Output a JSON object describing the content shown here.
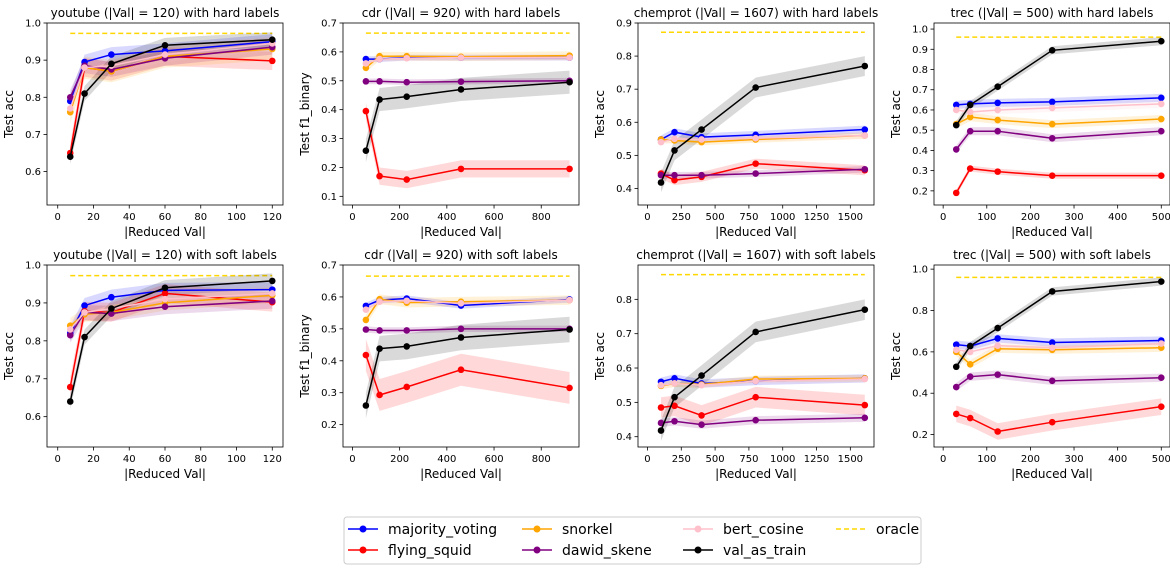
{
  "colors": {
    "majority_voting": "#0000ff",
    "flying_squid": "#ff0000",
    "snorkel": "#ffa500",
    "dawid_skene": "#800080",
    "bert_cosine": "#ffc0cb",
    "val_as_train": "#000000",
    "oracle": "#ffd700"
  },
  "legend": {
    "entries": [
      {
        "key": "majority_voting",
        "label": "majority_voting",
        "style": "marker"
      },
      {
        "key": "flying_squid",
        "label": "flying_squid",
        "style": "marker"
      },
      {
        "key": "snorkel",
        "label": "snorkel",
        "style": "marker"
      },
      {
        "key": "dawid_skene",
        "label": "dawid_skene",
        "style": "marker"
      },
      {
        "key": "bert_cosine",
        "label": "bert_cosine",
        "style": "marker"
      },
      {
        "key": "val_as_train",
        "label": "val_as_train",
        "style": "marker"
      },
      {
        "key": "oracle",
        "label": "oracle",
        "style": "dashed"
      }
    ]
  },
  "chart_data": [
    {
      "type": "line",
      "title": "youtube (|Val| = 120) with hard labels",
      "xlabel": "|Reduced Val|",
      "ylabel": "Test acc",
      "xlim": [
        -6,
        126
      ],
      "ylim": [
        0.51,
        1.0
      ],
      "xticks": [
        0,
        20,
        40,
        60,
        80,
        100,
        120
      ],
      "yticks": [
        0.6,
        0.7,
        0.8,
        0.9,
        1.0
      ],
      "ytick_labels": [
        "0.6",
        "0.7",
        "0.8",
        "0.9",
        "1.0"
      ],
      "x": [
        7,
        15,
        30,
        60,
        120
      ],
      "oracle": 0.972,
      "series": [
        {
          "name": "majority_voting",
          "values": [
            0.79,
            0.895,
            0.915,
            0.925,
            0.95
          ],
          "band": 0.02
        },
        {
          "name": "flying_squid",
          "values": [
            0.65,
            0.88,
            0.87,
            0.91,
            0.898
          ],
          "band": 0.025
        },
        {
          "name": "snorkel",
          "values": [
            0.76,
            0.88,
            0.87,
            0.91,
            0.93
          ],
          "band": 0.03
        },
        {
          "name": "dawid_skene",
          "values": [
            0.8,
            0.885,
            0.875,
            0.905,
            0.935
          ],
          "band": 0.02
        },
        {
          "name": "bert_cosine",
          "values": [
            0.77,
            0.88,
            0.885,
            0.915,
            0.945
          ],
          "band": 0.02
        },
        {
          "name": "val_as_train",
          "values": [
            0.64,
            0.81,
            0.89,
            0.94,
            0.955
          ],
          "band": 0.02
        }
      ]
    },
    {
      "type": "line",
      "title": "cdr (|Val| = 920) with hard labels",
      "xlabel": "|Reduced Val|",
      "ylabel": "Test f1_binary",
      "xlim": [
        -40,
        960
      ],
      "ylim": [
        0.07,
        0.7
      ],
      "xticks": [
        0,
        200,
        400,
        600,
        800
      ],
      "yticks": [
        0.1,
        0.2,
        0.3,
        0.4,
        0.5,
        0.6,
        0.7
      ],
      "ytick_labels": [
        "0.1",
        "0.2",
        "0.3",
        "0.4",
        "0.5",
        "0.6",
        "0.7"
      ],
      "x": [
        57,
        115,
        230,
        460,
        920
      ],
      "oracle": 0.665,
      "series": [
        {
          "name": "majority_voting",
          "values": [
            0.575,
            0.575,
            0.58,
            0.58,
            0.58
          ],
          "band": 0.01
        },
        {
          "name": "flying_squid",
          "values": [
            0.395,
            0.17,
            0.158,
            0.195,
            0.195
          ],
          "band": 0.03
        },
        {
          "name": "snorkel",
          "values": [
            0.545,
            0.585,
            0.585,
            0.583,
            0.587
          ],
          "band": 0.015
        },
        {
          "name": "dawid_skene",
          "values": [
            0.498,
            0.498,
            0.495,
            0.497,
            0.5
          ],
          "band": 0.01
        },
        {
          "name": "bert_cosine",
          "values": [
            0.56,
            0.575,
            0.578,
            0.58,
            0.58
          ],
          "band": 0.01
        },
        {
          "name": "val_as_train",
          "values": [
            0.258,
            0.435,
            0.445,
            0.47,
            0.495
          ],
          "band": 0.04
        }
      ]
    },
    {
      "type": "line",
      "title": "chemprot (|Val| = 1607) with hard labels",
      "xlabel": "|Reduced Val|",
      "ylabel": "Test acc",
      "xlim": [
        -70,
        1675
      ],
      "ylim": [
        0.35,
        0.9
      ],
      "xticks": [
        0,
        250,
        500,
        750,
        1000,
        1250,
        1500
      ],
      "yticks": [
        0.4,
        0.5,
        0.6,
        0.7,
        0.8,
        0.9
      ],
      "ytick_labels": [
        "0.4",
        "0.5",
        "0.6",
        "0.7",
        "0.8",
        "0.9"
      ],
      "x": [
        100,
        200,
        400,
        800,
        1607
      ],
      "oracle": 0.872,
      "series": [
        {
          "name": "majority_voting",
          "values": [
            0.548,
            0.57,
            0.555,
            0.562,
            0.578
          ],
          "band": 0.012
        },
        {
          "name": "flying_squid",
          "values": [
            0.445,
            0.425,
            0.435,
            0.475,
            0.455
          ],
          "band": 0.015
        },
        {
          "name": "snorkel",
          "values": [
            0.548,
            0.545,
            0.54,
            0.548,
            0.56
          ],
          "band": 0.01
        },
        {
          "name": "dawid_skene",
          "values": [
            0.44,
            0.44,
            0.44,
            0.445,
            0.458
          ],
          "band": 0.01
        },
        {
          "name": "bert_cosine",
          "values": [
            0.54,
            0.55,
            0.548,
            0.552,
            0.56
          ],
          "band": 0.01
        },
        {
          "name": "val_as_train",
          "values": [
            0.418,
            0.515,
            0.578,
            0.705,
            0.77
          ],
          "band": 0.03
        }
      ]
    },
    {
      "type": "line",
      "title": "trec (|Val| = 500) with hard labels",
      "xlabel": "|Reduced Val|",
      "ylabel": "Test acc",
      "xlim": [
        -21,
        520
      ],
      "ylim": [
        0.13,
        1.03
      ],
      "xticks": [
        0,
        100,
        200,
        300,
        400,
        500
      ],
      "yticks": [
        0.2,
        0.3,
        0.4,
        0.5,
        0.6,
        0.7,
        0.8,
        0.9,
        1.0
      ],
      "ytick_labels": [
        "0.2",
        "0.3",
        "0.4",
        "0.5",
        "0.6",
        "0.7",
        "0.8",
        "0.9",
        "1.0"
      ],
      "x": [
        30,
        62,
        125,
        250,
        500
      ],
      "oracle": 0.96,
      "series": [
        {
          "name": "majority_voting",
          "values": [
            0.625,
            0.63,
            0.635,
            0.64,
            0.66
          ],
          "band": 0.02
        },
        {
          "name": "flying_squid",
          "values": [
            0.19,
            0.31,
            0.295,
            0.275,
            0.275
          ],
          "band": 0.015
        },
        {
          "name": "snorkel",
          "values": [
            0.53,
            0.565,
            0.55,
            0.53,
            0.555
          ],
          "band": 0.02
        },
        {
          "name": "dawid_skene",
          "values": [
            0.405,
            0.495,
            0.495,
            0.46,
            0.495
          ],
          "band": 0.02
        },
        {
          "name": "bert_cosine",
          "values": [
            0.6,
            0.59,
            0.6,
            0.61,
            0.63
          ],
          "band": 0.02
        },
        {
          "name": "val_as_train",
          "values": [
            0.525,
            0.625,
            0.715,
            0.895,
            0.94
          ],
          "band": 0.02
        }
      ]
    },
    {
      "type": "line",
      "title": "youtube (|Val| = 120) with soft labels",
      "xlabel": "|Reduced Val|",
      "ylabel": "Test acc",
      "xlim": [
        -6,
        126
      ],
      "ylim": [
        0.52,
        1.0
      ],
      "xticks": [
        0,
        20,
        40,
        60,
        80,
        100,
        120
      ],
      "yticks": [
        0.6,
        0.7,
        0.8,
        0.9,
        1.0
      ],
      "ytick_labels": [
        "0.6",
        "0.7",
        "0.8",
        "0.9",
        "1.0"
      ],
      "x": [
        7,
        15,
        30,
        60,
        120
      ],
      "oracle": 0.972,
      "series": [
        {
          "name": "majority_voting",
          "values": [
            0.82,
            0.893,
            0.915,
            0.933,
            0.935
          ],
          "band": 0.02
        },
        {
          "name": "flying_squid",
          "values": [
            0.678,
            0.878,
            0.875,
            0.925,
            0.902
          ],
          "band": 0.025
        },
        {
          "name": "snorkel",
          "values": [
            0.84,
            0.87,
            0.875,
            0.9,
            0.92
          ],
          "band": 0.02
        },
        {
          "name": "dawid_skene",
          "values": [
            0.815,
            0.875,
            0.872,
            0.89,
            0.905
          ],
          "band": 0.02
        },
        {
          "name": "bert_cosine",
          "values": [
            0.83,
            0.875,
            0.885,
            0.91,
            0.925
          ],
          "band": 0.02
        },
        {
          "name": "val_as_train",
          "values": [
            0.64,
            0.81,
            0.885,
            0.94,
            0.958
          ],
          "band": 0.02
        }
      ]
    },
    {
      "type": "line",
      "title": "cdr (|Val| = 920) with soft labels",
      "xlabel": "|Reduced Val|",
      "ylabel": "Test f1_binary",
      "xlim": [
        -40,
        960
      ],
      "ylim": [
        0.13,
        0.7
      ],
      "xticks": [
        0,
        200,
        400,
        600,
        800
      ],
      "yticks": [
        0.2,
        0.3,
        0.4,
        0.5,
        0.6,
        0.7
      ],
      "ytick_labels": [
        "0.2",
        "0.3",
        "0.4",
        "0.5",
        "0.6",
        "0.7"
      ],
      "x": [
        57,
        115,
        230,
        460,
        920
      ],
      "oracle": 0.665,
      "series": [
        {
          "name": "majority_voting",
          "values": [
            0.572,
            0.59,
            0.595,
            0.573,
            0.592
          ],
          "band": 0.01
        },
        {
          "name": "flying_squid",
          "values": [
            0.418,
            0.293,
            0.318,
            0.372,
            0.315
          ],
          "band": 0.05
        },
        {
          "name": "snorkel",
          "values": [
            0.528,
            0.593,
            0.582,
            0.585,
            0.59
          ],
          "band": 0.015
        },
        {
          "name": "dawid_skene",
          "values": [
            0.498,
            0.495,
            0.495,
            0.5,
            0.5
          ],
          "band": 0.01
        },
        {
          "name": "bert_cosine",
          "values": [
            0.56,
            0.585,
            0.588,
            0.58,
            0.59
          ],
          "band": 0.01
        },
        {
          "name": "val_as_train",
          "values": [
            0.26,
            0.438,
            0.445,
            0.473,
            0.498
          ],
          "band": 0.04
        }
      ]
    },
    {
      "type": "line",
      "title": "chemprot (|Val| = 1607) with soft labels",
      "xlabel": "|Reduced Val|",
      "ylabel": "Test acc",
      "xlim": [
        -70,
        1675
      ],
      "ylim": [
        0.37,
        0.9
      ],
      "xticks": [
        0,
        250,
        500,
        750,
        1000,
        1250,
        1500
      ],
      "yticks": [
        0.4,
        0.5,
        0.6,
        0.7,
        0.8
      ],
      "ytick_labels": [
        "0.4",
        "0.5",
        "0.6",
        "0.7",
        "0.8"
      ],
      "x": [
        100,
        200,
        400,
        800,
        1607
      ],
      "oracle": 0.872,
      "series": [
        {
          "name": "majority_voting",
          "values": [
            0.56,
            0.57,
            0.555,
            0.562,
            0.57
          ],
          "band": 0.012
        },
        {
          "name": "flying_squid",
          "values": [
            0.485,
            0.49,
            0.462,
            0.515,
            0.492
          ],
          "band": 0.03
        },
        {
          "name": "snorkel",
          "values": [
            0.548,
            0.555,
            0.552,
            0.568,
            0.57
          ],
          "band": 0.01
        },
        {
          "name": "dawid_skene",
          "values": [
            0.44,
            0.445,
            0.435,
            0.448,
            0.455
          ],
          "band": 0.012
        },
        {
          "name": "bert_cosine",
          "values": [
            0.55,
            0.555,
            0.55,
            0.562,
            0.568
          ],
          "band": 0.01
        },
        {
          "name": "val_as_train",
          "values": [
            0.418,
            0.515,
            0.578,
            0.705,
            0.77
          ],
          "band": 0.03
        }
      ]
    },
    {
      "type": "line",
      "title": "trec (|Val| = 500) with soft labels",
      "xlabel": "|Reduced Val|",
      "ylabel": "Test acc",
      "xlim": [
        -21,
        520
      ],
      "ylim": [
        0.14,
        1.02
      ],
      "xticks": [
        0,
        100,
        200,
        300,
        400,
        500
      ],
      "yticks": [
        0.2,
        0.4,
        0.6,
        0.8,
        1.0
      ],
      "ytick_labels": [
        "0.2",
        "0.4",
        "0.6",
        "0.8",
        "1.0"
      ],
      "x": [
        30,
        62,
        125,
        250,
        500
      ],
      "oracle": 0.96,
      "series": [
        {
          "name": "majority_voting",
          "values": [
            0.635,
            0.628,
            0.665,
            0.645,
            0.655
          ],
          "band": 0.02
        },
        {
          "name": "flying_squid",
          "values": [
            0.3,
            0.28,
            0.215,
            0.26,
            0.335
          ],
          "band": 0.04
        },
        {
          "name": "snorkel",
          "values": [
            0.6,
            0.54,
            0.615,
            0.61,
            0.62
          ],
          "band": 0.02
        },
        {
          "name": "dawid_skene",
          "values": [
            0.43,
            0.48,
            0.49,
            0.46,
            0.475
          ],
          "band": 0.02
        },
        {
          "name": "bert_cosine",
          "values": [
            0.61,
            0.6,
            0.63,
            0.62,
            0.64
          ],
          "band": 0.02
        },
        {
          "name": "val_as_train",
          "values": [
            0.528,
            0.628,
            0.715,
            0.892,
            0.94
          ],
          "band": 0.02
        }
      ]
    }
  ]
}
